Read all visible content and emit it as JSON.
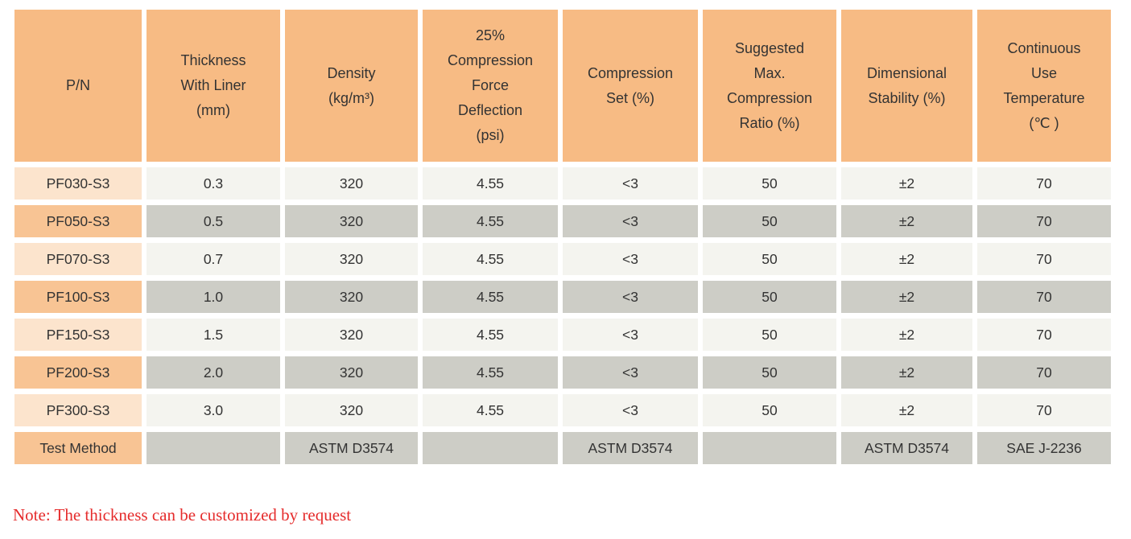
{
  "colors": {
    "header_bg": "#F7BB84",
    "pn_light_bg": "#FCE4CD",
    "pn_dark_bg": "#F8C494",
    "cell_light_bg": "#F4F4EF",
    "cell_dark_bg": "#CDCDC6",
    "text": "#333333",
    "note_red": "#E52B2B",
    "page_bg": "#FFFFFF"
  },
  "table": {
    "columns": [
      {
        "id": "pn",
        "label": "P/N"
      },
      {
        "id": "thickness-with-liner-mm",
        "label": "Thickness\nWith Liner\n(mm)"
      },
      {
        "id": "density-kg-m3",
        "label": "Density\n(kg/m³)"
      },
      {
        "id": "compression-force-deflection-25pct-psi",
        "label": "25%\nCompression\nForce\nDeflection\n(psi)"
      },
      {
        "id": "compression-set-pct",
        "label": "Compression\nSet (%)"
      },
      {
        "id": "suggested-max-compression-ratio-pct",
        "label": "Suggested\nMax.\nCompression\nRatio (%)"
      },
      {
        "id": "dimensional-stability-pct",
        "label": "Dimensional\nStability (%)"
      },
      {
        "id": "continuous-use-temperature-c",
        "label": "Continuous\nUse\nTemperature\n(℃ )"
      }
    ],
    "rows": [
      [
        "PF030-S3",
        "0.3",
        "320",
        "4.55",
        "<3",
        "50",
        "±2",
        "70"
      ],
      [
        "PF050-S3",
        "0.5",
        "320",
        "4.55",
        "<3",
        "50",
        "±2",
        "70"
      ],
      [
        "PF070-S3",
        "0.7",
        "320",
        "4.55",
        "<3",
        "50",
        "±2",
        "70"
      ],
      [
        "PF100-S3",
        "1.0",
        "320",
        "4.55",
        "<3",
        "50",
        "±2",
        "70"
      ],
      [
        "PF150-S3",
        "1.5",
        "320",
        "4.55",
        "<3",
        "50",
        "±2",
        "70"
      ],
      [
        "PF200-S3",
        "2.0",
        "320",
        "4.55",
        "<3",
        "50",
        "±2",
        "70"
      ],
      [
        "PF300-S3",
        "3.0",
        "320",
        "4.55",
        "<3",
        "50",
        "±2",
        "70"
      ],
      [
        "Test Method",
        "",
        "ASTM D3574",
        "",
        "ASTM D3574",
        "",
        "ASTM D3574",
        "SAE J-2236"
      ]
    ]
  },
  "note": "Note: The thickness can be customized by request"
}
